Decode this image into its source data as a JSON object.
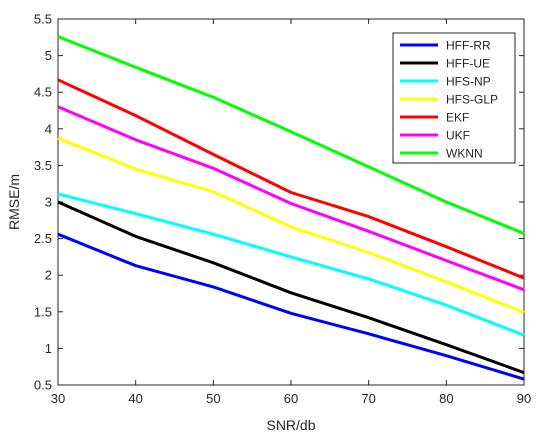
{
  "chart_data": {
    "type": "line",
    "title": "",
    "xlabel": "SNR/db",
    "ylabel": "RMSE/m",
    "xlim": [
      30,
      90
    ],
    "ylim": [
      0.5,
      5.5
    ],
    "xticks": [
      30,
      40,
      50,
      60,
      70,
      80,
      90
    ],
    "yticks": [
      0.5,
      1,
      1.5,
      2,
      2.5,
      3,
      3.5,
      4,
      4.5,
      5,
      5.5
    ],
    "xtick_labels": [
      "30",
      "40",
      "50",
      "60",
      "70",
      "80",
      "90"
    ],
    "ytick_labels": [
      "0.5",
      "1",
      "1.5",
      "2",
      "2.5",
      "3",
      "3.5",
      "4",
      "4.5",
      "5",
      "5.5"
    ],
    "grid": false,
    "legend_position": "top-right",
    "series": [
      {
        "name": "HFF-RR",
        "color": "#0000ff",
        "x": [
          30,
          40,
          50,
          60,
          70,
          80,
          90
        ],
        "y": [
          2.56,
          2.13,
          1.84,
          1.48,
          1.2,
          0.9,
          0.58
        ]
      },
      {
        "name": "HFF-UE",
        "color": "#000000",
        "x": [
          30,
          40,
          50,
          60,
          70,
          80,
          90
        ],
        "y": [
          3.0,
          2.53,
          2.17,
          1.76,
          1.42,
          1.05,
          0.67
        ]
      },
      {
        "name": "HFS-NP",
        "color": "#00ffff",
        "x": [
          30,
          40,
          50,
          60,
          70,
          80,
          90
        ],
        "y": [
          3.11,
          2.84,
          2.56,
          2.25,
          1.95,
          1.59,
          1.18
        ]
      },
      {
        "name": "HFS-GLP",
        "color": "#ffff00",
        "x": [
          30,
          40,
          50,
          60,
          70,
          80,
          90
        ],
        "y": [
          3.87,
          3.45,
          3.14,
          2.66,
          2.31,
          1.91,
          1.49
        ]
      },
      {
        "name": "EKF",
        "color": "#ff0000",
        "x": [
          30,
          40,
          50,
          60,
          70,
          80,
          90
        ],
        "y": [
          4.67,
          4.18,
          3.65,
          3.13,
          2.8,
          2.39,
          1.96
        ]
      },
      {
        "name": "UKF",
        "color": "#ff00ff",
        "x": [
          30,
          40,
          50,
          60,
          70,
          80,
          90
        ],
        "y": [
          4.3,
          3.85,
          3.46,
          2.98,
          2.6,
          2.2,
          1.8
        ]
      },
      {
        "name": "WKNN",
        "color": "#00ff00",
        "x": [
          30,
          40,
          50,
          60,
          70,
          80,
          90
        ],
        "y": [
          5.26,
          4.84,
          4.43,
          3.96,
          3.48,
          3.0,
          2.57
        ]
      }
    ]
  }
}
